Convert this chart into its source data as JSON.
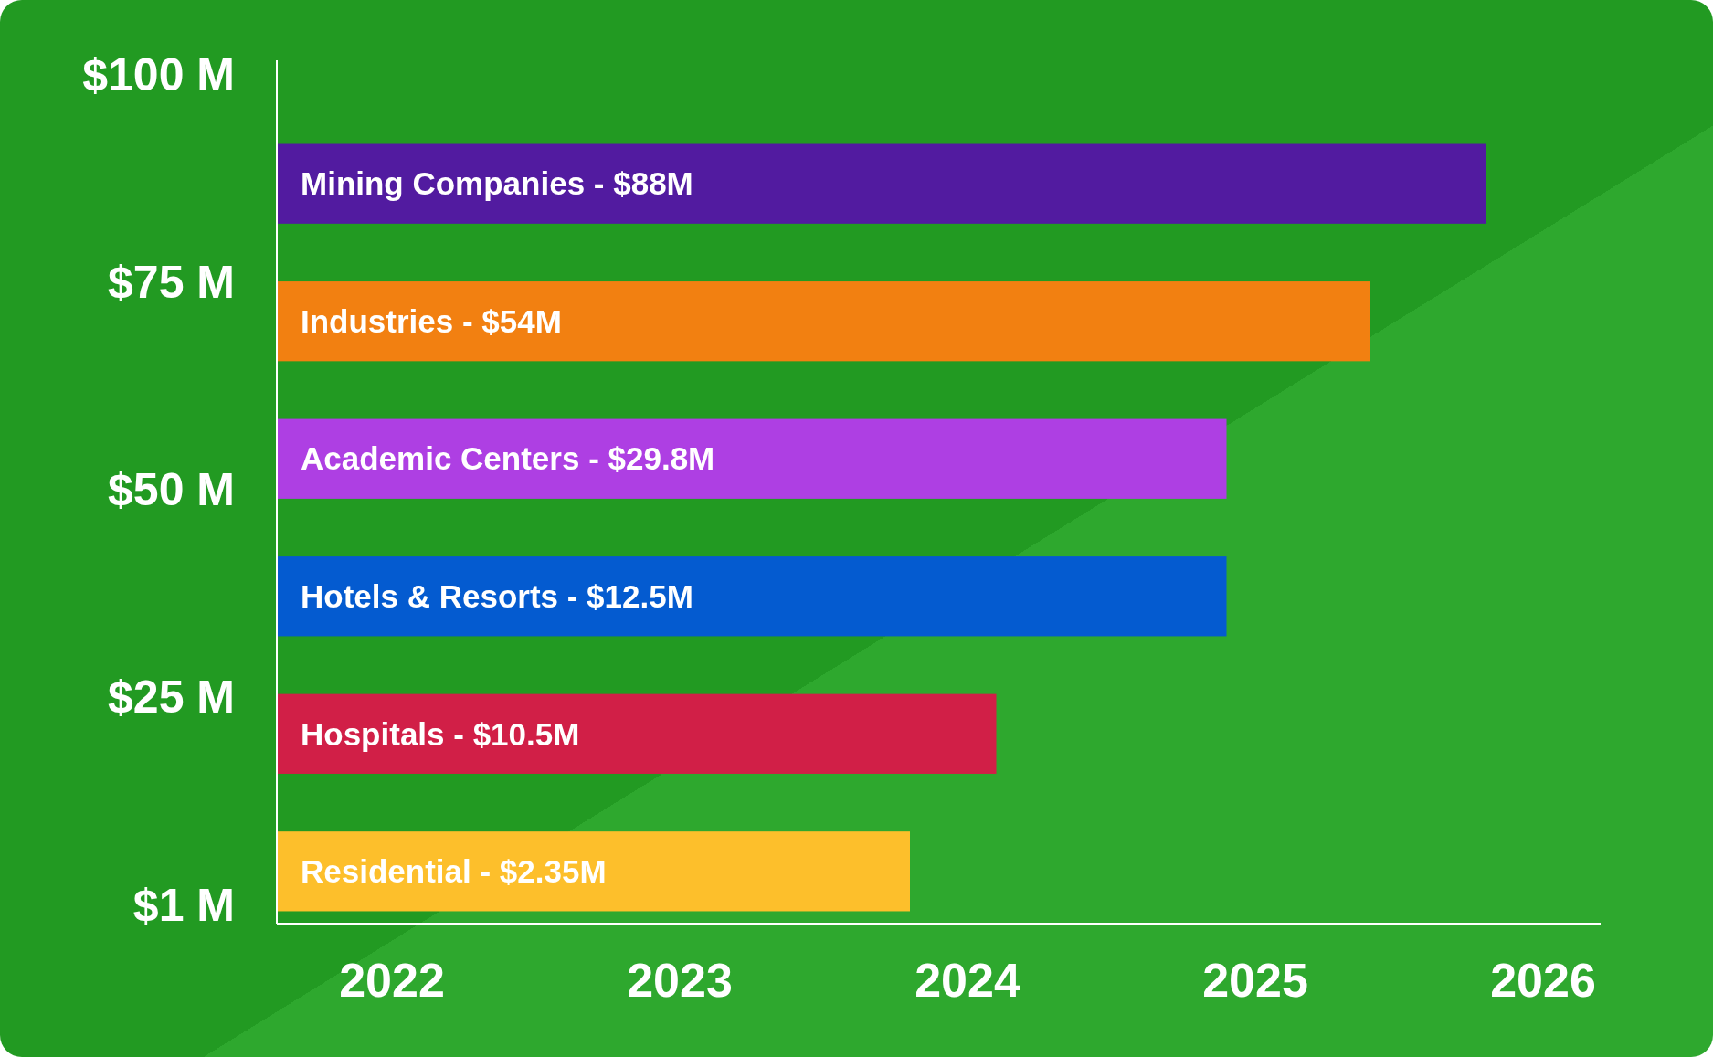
{
  "chart_data": {
    "type": "bar",
    "orientation": "horizontal",
    "categories": [
      "Mining Companies - $88M",
      "Industries - $54M",
      "Academic Centers - $29.8M",
      "Hotels & Resorts - $12.5M",
      "Hospitals - $10.5M",
      "Residential - $2.35M"
    ],
    "base": [
      2021.6,
      2021.6,
      2021.6,
      2021.6,
      2021.6,
      2021.6
    ],
    "values": [
      4.2,
      3.8,
      3.3,
      3.3,
      2.5,
      2.2
    ],
    "colors": [
      "#521ba0",
      "#f28011",
      "#ae3fe3",
      "#045bd0",
      "#d11f47",
      "#fdbf2b"
    ],
    "xlim": [
      2021.6,
      2026.2
    ],
    "xticks": [
      2022,
      2023,
      2024,
      2025,
      2026
    ],
    "annotations": [
      "$100 M",
      "$75 M",
      "$50 M",
      "$25 M",
      "$1 M"
    ],
    "grid": false
  }
}
